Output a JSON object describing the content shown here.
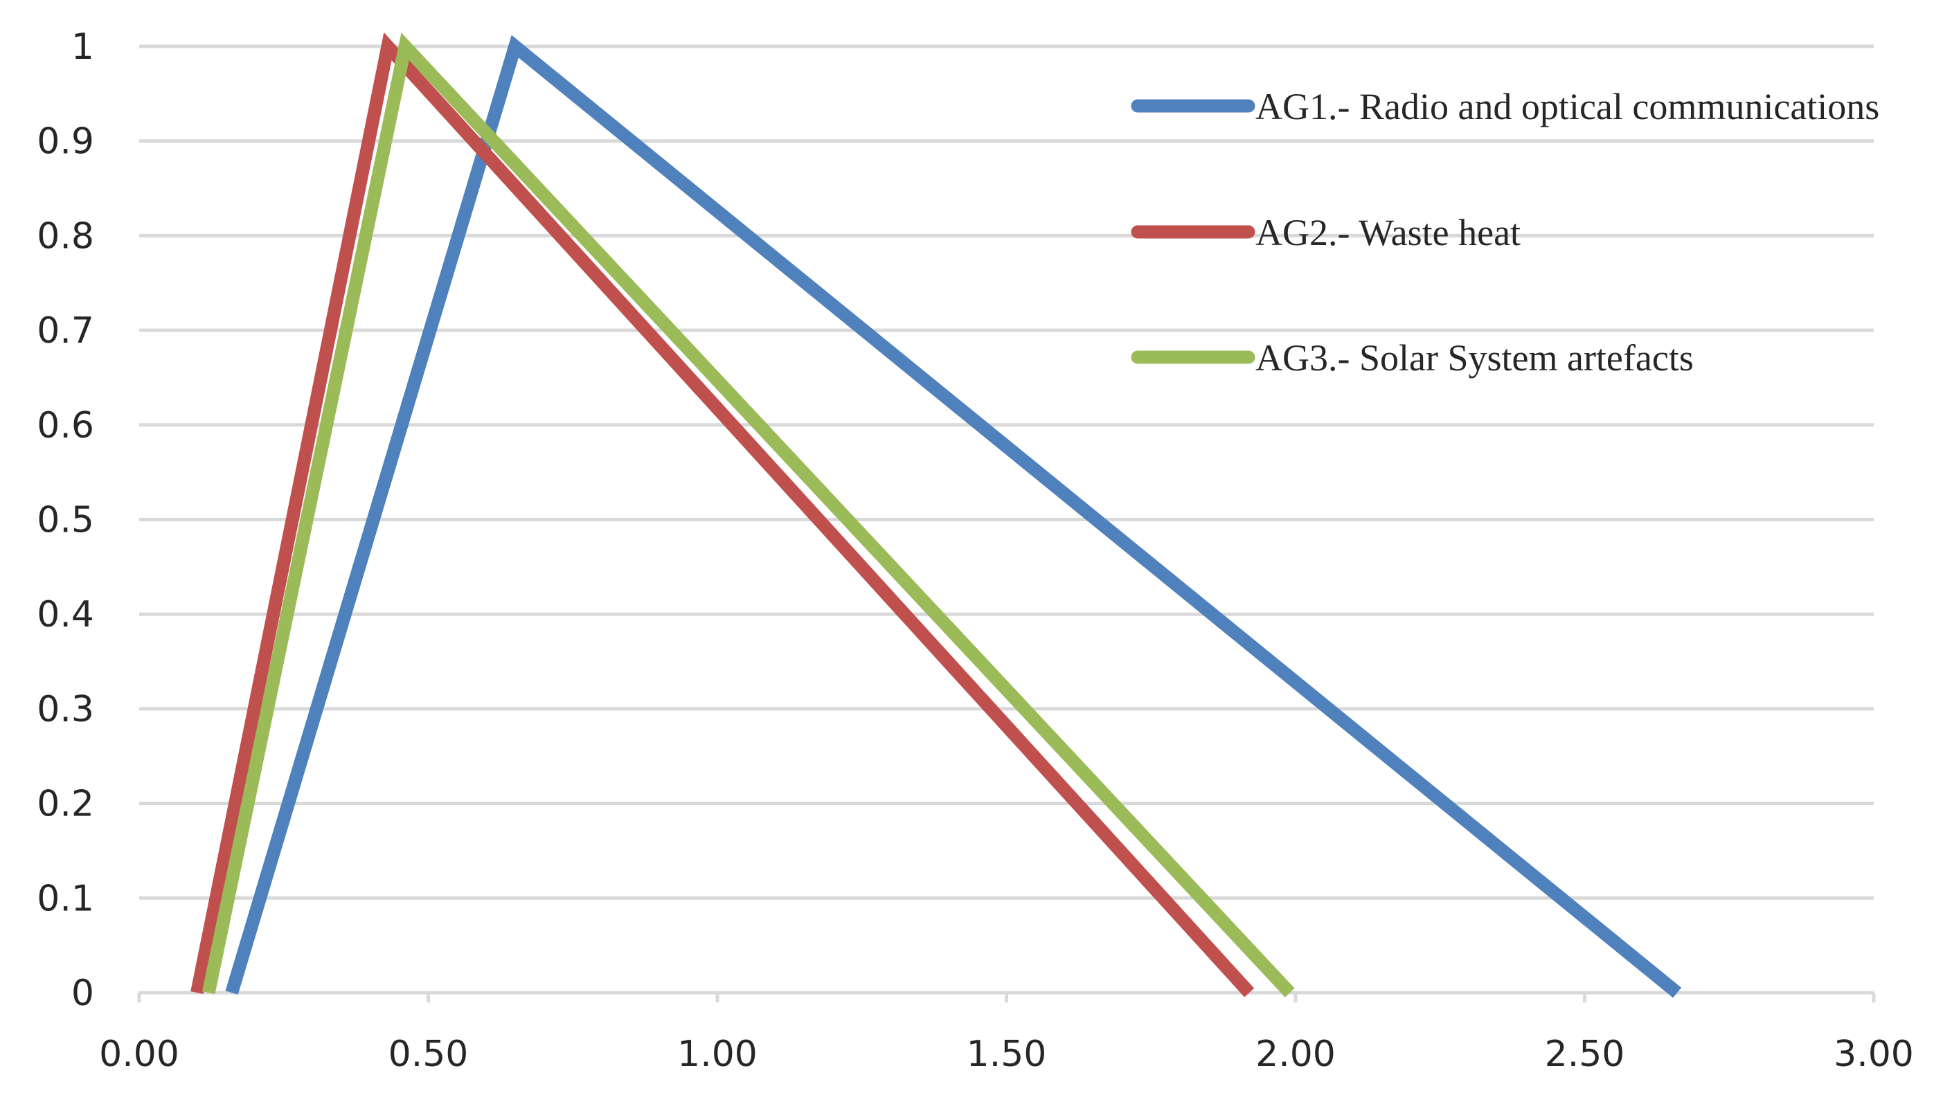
{
  "chart_data": {
    "type": "line",
    "title": "",
    "xlabel": "",
    "ylabel": "",
    "xlim": [
      0,
      3
    ],
    "ylim": [
      0,
      1
    ],
    "x_ticks": [
      0,
      0.5,
      1,
      1.5,
      2,
      2.5,
      3
    ],
    "x_tick_labels": [
      "0.00",
      "0.50",
      "1.00",
      "1.50",
      "2.00",
      "2.50",
      "3.00"
    ],
    "y_ticks": [
      0,
      0.1,
      0.2,
      0.3,
      0.4,
      0.5,
      0.6,
      0.7,
      0.8,
      0.9,
      1
    ],
    "y_tick_labels": [
      "0",
      "0.1",
      "0.2",
      "0.3",
      "0.4",
      "0.5",
      "0.6",
      "0.7",
      "0.8",
      "0.9",
      "1"
    ],
    "grid": true,
    "legend_position": "top-right",
    "series": [
      {
        "name": "AG1.- Radio and optical communications",
        "color": "#4f81bd",
        "x": [
          0.16,
          0.65,
          2.66
        ],
        "y": [
          0,
          1,
          0
        ]
      },
      {
        "name": "AG2.- Waste heat",
        "color": "#c0504d",
        "x": [
          0.1,
          0.43,
          1.92
        ],
        "y": [
          0,
          1,
          0
        ]
      },
      {
        "name": "AG3.- Solar System artefacts",
        "color": "#9bbb59",
        "x": [
          0.12,
          0.46,
          1.99
        ],
        "y": [
          0,
          1,
          0
        ]
      }
    ]
  }
}
